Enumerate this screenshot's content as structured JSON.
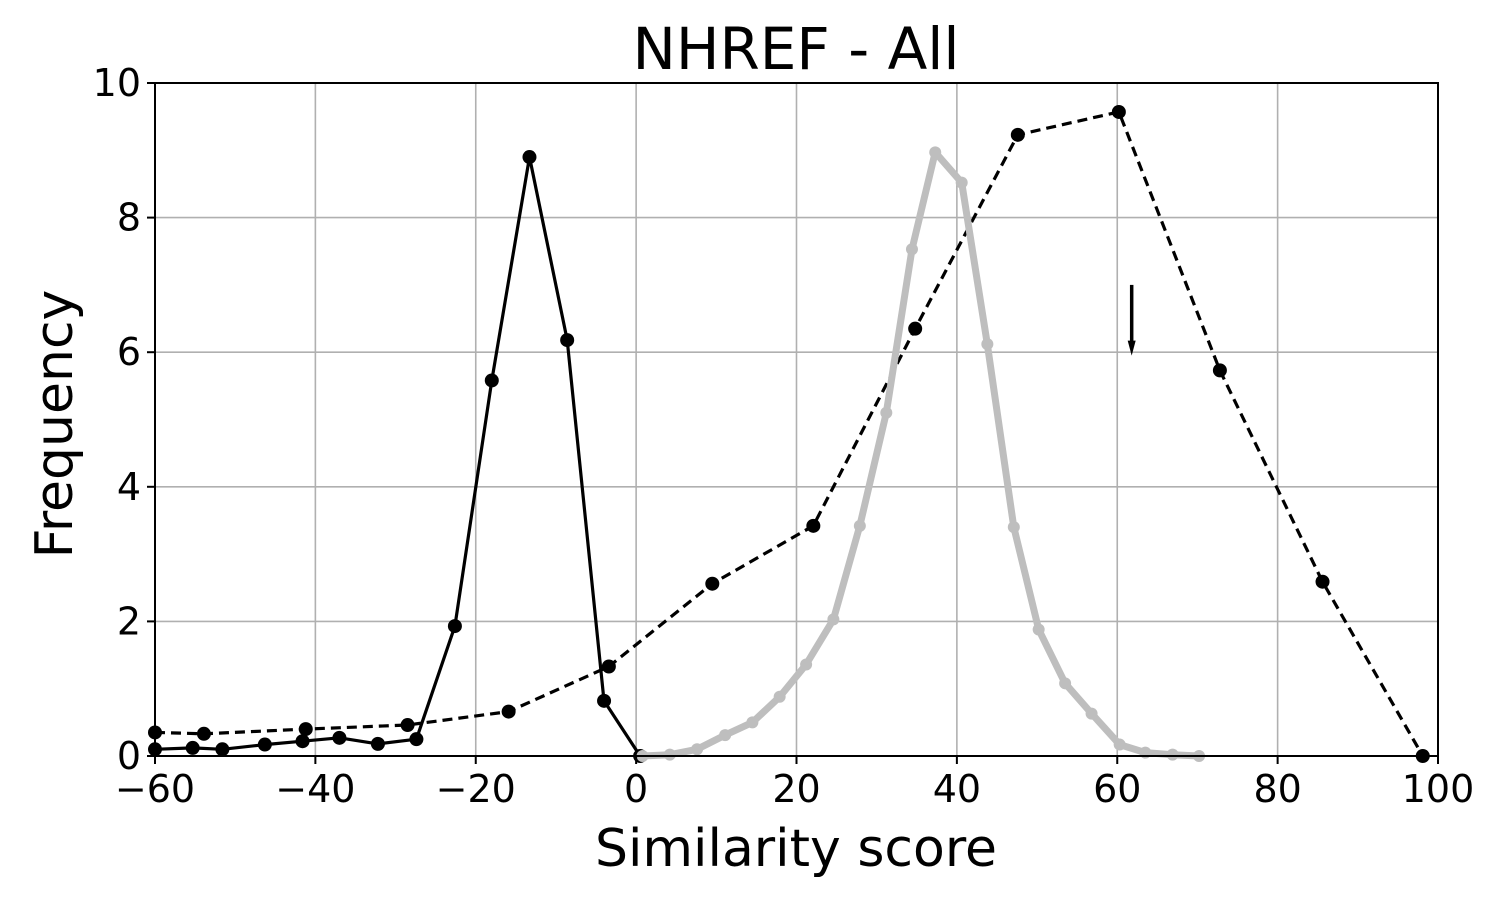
{
  "chart_data": {
    "type": "line",
    "title": "NHREF - All",
    "xlabel": "Similarity score",
    "ylabel": "Frequency",
    "xlim": [
      -60,
      100
    ],
    "ylim": [
      0,
      10
    ],
    "xticks": [
      -60,
      -40,
      -20,
      0,
      20,
      40,
      60,
      80,
      100
    ],
    "xtick_labels": [
      "−60",
      "−40",
      "−20",
      "0",
      "20",
      "40",
      "60",
      "80",
      "100"
    ],
    "yticks": [
      0,
      2,
      4,
      6,
      8,
      10
    ],
    "ytick_labels": [
      "0",
      "2",
      "4",
      "6",
      "8",
      "10"
    ],
    "grid": true,
    "legend": false,
    "series": [
      {
        "style": "solid",
        "color": "#000000",
        "points": [
          [
            -60,
            0.1
          ],
          [
            -55.3,
            0.12
          ],
          [
            -51.6,
            0.1
          ],
          [
            -46.3,
            0.17
          ],
          [
            -41.6,
            0.22
          ],
          [
            -37,
            0.27
          ],
          [
            -32.2,
            0.18
          ],
          [
            -27.4,
            0.25
          ],
          [
            -22.6,
            1.93
          ],
          [
            -18,
            5.58
          ],
          [
            -13.3,
            8.9
          ],
          [
            -8.6,
            6.18
          ],
          [
            -4,
            0.82
          ],
          [
            0.5,
            0.0
          ]
        ]
      },
      {
        "style": "dashed",
        "color": "#000000",
        "points": [
          [
            -60,
            0.35
          ],
          [
            -53.9,
            0.33
          ],
          [
            -41.2,
            0.4
          ],
          [
            -28.5,
            0.46
          ],
          [
            -15.9,
            0.66
          ],
          [
            -3.4,
            1.33
          ],
          [
            9.5,
            2.56
          ],
          [
            22.1,
            3.42
          ],
          [
            34.8,
            6.35
          ],
          [
            47.6,
            9.23
          ],
          [
            60.2,
            9.57
          ],
          [
            72.8,
            5.73
          ],
          [
            85.6,
            2.59
          ],
          [
            98.1,
            0.0
          ]
        ]
      },
      {
        "style": "solid-thick",
        "color": "#bebebe",
        "points": [
          [
            0.8,
            0.0
          ],
          [
            4.2,
            0.02
          ],
          [
            7.6,
            0.1
          ],
          [
            11.1,
            0.31
          ],
          [
            14.5,
            0.5
          ],
          [
            17.9,
            0.88
          ],
          [
            21.2,
            1.36
          ],
          [
            24.6,
            2.03
          ],
          [
            27.9,
            3.42
          ],
          [
            31.2,
            5.1
          ],
          [
            34.4,
            7.53
          ],
          [
            37.3,
            8.97
          ],
          [
            40.6,
            8.52
          ],
          [
            43.8,
            6.12
          ],
          [
            47.1,
            3.4
          ],
          [
            50.2,
            1.88
          ],
          [
            53.5,
            1.08
          ],
          [
            56.8,
            0.63
          ],
          [
            60.3,
            0.17
          ],
          [
            63.5,
            0.05
          ],
          [
            66.9,
            0.02
          ],
          [
            70.2,
            0.0
          ]
        ]
      }
    ],
    "annotations": [
      {
        "type": "arrow",
        "direction": "down",
        "x": 61.8,
        "y_from": 7.0,
        "y_to": 5.95
      }
    ]
  }
}
